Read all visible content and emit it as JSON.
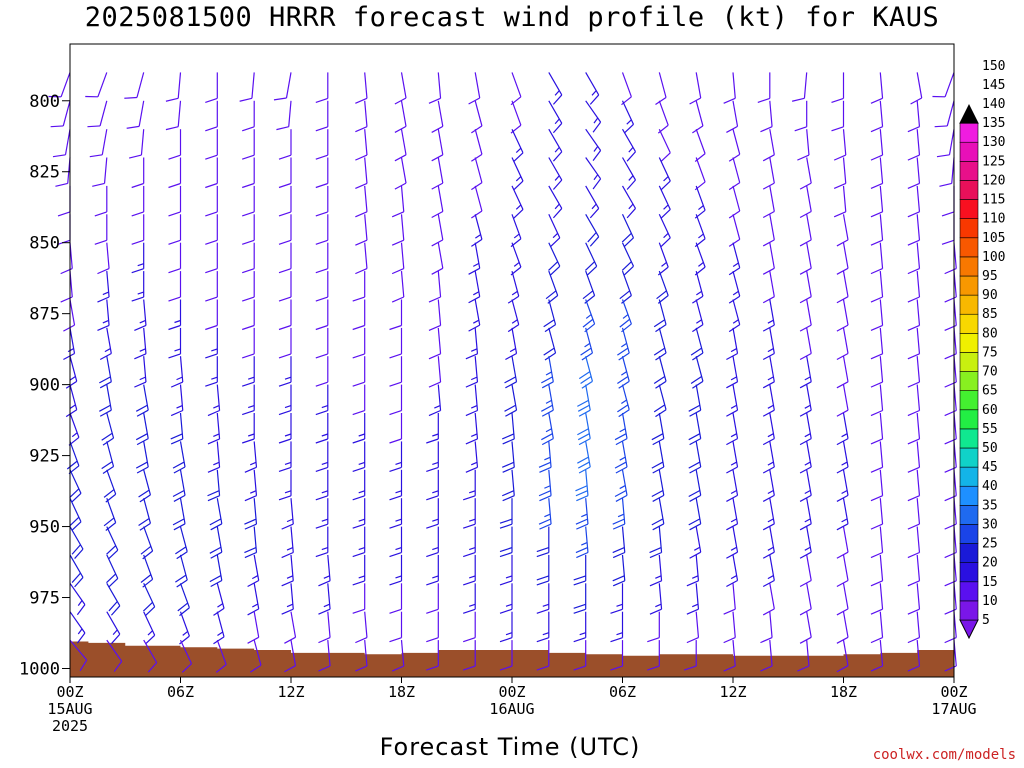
{
  "title": "2025081500 HRRR forecast wind profile (kt) for KAUS",
  "credit": "coolwx.com/models",
  "colors": {
    "terrain": "#9b4f2a",
    "speed_scale": [
      "#7a16e8",
      "#5a10f0",
      "#2a10e0",
      "#1a1ad8",
      "#1a44e8",
      "#1f6af0",
      "#1e90ff",
      "#13b4e8",
      "#10d2c8",
      "#10e890",
      "#22ee44",
      "#44f030",
      "#88f020",
      "#c8f010",
      "#f0f000",
      "#f8d800",
      "#f8b800",
      "#f89800",
      "#f87800",
      "#f85800",
      "#f83800",
      "#f81020",
      "#e8105a",
      "#e8108a",
      "#e810b8",
      "#f01ce0"
    ]
  },
  "chart_data": {
    "type": "wind_barb_time_height",
    "title": "2025081500 HRRR forecast wind profile (kt) for KAUS",
    "xlabel": "Forecast Time (UTC)",
    "ylabel": "",
    "x_range_hours": [
      0,
      48
    ],
    "y_range_hpa": [
      780,
      1003
    ],
    "y_ticks": [
      800,
      825,
      850,
      875,
      900,
      925,
      950,
      975,
      1000
    ],
    "x_ticks": [
      {
        "hour": 0,
        "lines": [
          "00Z",
          "15AUG",
          "2025"
        ]
      },
      {
        "hour": 6,
        "lines": [
          "06Z"
        ]
      },
      {
        "hour": 12,
        "lines": [
          "12Z"
        ]
      },
      {
        "hour": 18,
        "lines": [
          "18Z"
        ]
      },
      {
        "hour": 24,
        "lines": [
          "00Z",
          "16AUG"
        ]
      },
      {
        "hour": 30,
        "lines": [
          "06Z"
        ]
      },
      {
        "hour": 36,
        "lines": [
          "12Z"
        ]
      },
      {
        "hour": 42,
        "lines": [
          "18Z"
        ]
      },
      {
        "hour": 48,
        "lines": [
          "00Z",
          "17AUG"
        ]
      }
    ],
    "barb_hours": [
      0,
      2,
      4,
      6,
      8,
      10,
      12,
      14,
      16,
      18,
      20,
      22,
      24,
      26,
      28,
      30,
      32,
      34,
      36,
      38,
      40,
      42,
      44,
      46,
      48
    ],
    "barb_levels_hpa": [
      790,
      800,
      810,
      820,
      830,
      840,
      850,
      860,
      870,
      880,
      890,
      900,
      910,
      920,
      930,
      940,
      950,
      960,
      970,
      980,
      990
    ],
    "wind_dir_deg": [
      [
        200,
        200,
        195,
        185,
        180,
        185,
        190,
        180,
        175,
        170,
        175,
        170,
        160,
        150,
        150,
        160,
        165,
        170,
        175,
        180,
        185,
        180,
        175,
        170,
        200
      ],
      [
        195,
        195,
        190,
        185,
        180,
        180,
        185,
        180,
        175,
        170,
        170,
        165,
        160,
        150,
        145,
        155,
        160,
        165,
        170,
        175,
        180,
        180,
        175,
        175,
        195
      ],
      [
        190,
        190,
        185,
        180,
        180,
        180,
        180,
        180,
        175,
        170,
        170,
        165,
        155,
        150,
        145,
        150,
        155,
        160,
        165,
        170,
        175,
        175,
        175,
        175,
        190
      ],
      [
        185,
        185,
        180,
        180,
        180,
        180,
        180,
        180,
        175,
        170,
        170,
        165,
        155,
        150,
        145,
        150,
        155,
        160,
        165,
        170,
        170,
        175,
        175,
        175,
        185
      ],
      [
        180,
        180,
        180,
        180,
        180,
        180,
        180,
        180,
        175,
        175,
        170,
        165,
        155,
        150,
        150,
        150,
        155,
        160,
        165,
        170,
        170,
        175,
        175,
        175,
        180
      ],
      [
        180,
        180,
        180,
        180,
        180,
        180,
        180,
        180,
        175,
        175,
        170,
        165,
        160,
        155,
        150,
        155,
        155,
        160,
        165,
        170,
        170,
        170,
        175,
        175,
        180
      ],
      [
        175,
        175,
        180,
        180,
        180,
        180,
        180,
        180,
        175,
        175,
        170,
        170,
        160,
        155,
        155,
        155,
        160,
        160,
        165,
        170,
        170,
        170,
        175,
        175,
        175
      ],
      [
        175,
        175,
        180,
        180,
        180,
        180,
        180,
        180,
        180,
        175,
        175,
        170,
        165,
        160,
        160,
        160,
        160,
        165,
        165,
        170,
        170,
        170,
        175,
        175,
        175
      ],
      [
        170,
        175,
        175,
        180,
        180,
        180,
        180,
        180,
        180,
        180,
        175,
        170,
        165,
        165,
        160,
        160,
        165,
        165,
        165,
        170,
        170,
        170,
        175,
        175,
        175
      ],
      [
        170,
        170,
        175,
        180,
        180,
        180,
        180,
        180,
        180,
        180,
        175,
        175,
        170,
        165,
        165,
        165,
        165,
        165,
        170,
        170,
        170,
        170,
        175,
        175,
        175
      ],
      [
        165,
        170,
        175,
        175,
        180,
        180,
        180,
        180,
        180,
        180,
        175,
        175,
        170,
        170,
        165,
        165,
        165,
        165,
        170,
        170,
        170,
        170,
        175,
        175,
        175
      ],
      [
        165,
        170,
        170,
        175,
        175,
        180,
        180,
        180,
        180,
        180,
        175,
        175,
        170,
        170,
        170,
        165,
        165,
        170,
        170,
        170,
        170,
        170,
        175,
        175,
        175
      ],
      [
        160,
        165,
        170,
        175,
        175,
        180,
        180,
        180,
        180,
        180,
        180,
        175,
        175,
        170,
        170,
        170,
        170,
        170,
        170,
        170,
        170,
        170,
        175,
        175,
        175
      ],
      [
        160,
        165,
        170,
        170,
        175,
        175,
        180,
        180,
        180,
        180,
        180,
        175,
        175,
        175,
        170,
        170,
        170,
        170,
        170,
        170,
        170,
        170,
        175,
        175,
        175
      ],
      [
        155,
        160,
        165,
        170,
        175,
        175,
        180,
        180,
        180,
        180,
        180,
        180,
        175,
        175,
        175,
        170,
        170,
        170,
        170,
        170,
        170,
        170,
        175,
        175,
        175
      ],
      [
        155,
        160,
        165,
        170,
        170,
        175,
        175,
        180,
        180,
        180,
        180,
        180,
        180,
        175,
        175,
        175,
        170,
        170,
        170,
        170,
        170,
        170,
        175,
        175,
        175
      ],
      [
        150,
        155,
        160,
        165,
        170,
        175,
        175,
        180,
        180,
        180,
        180,
        180,
        180,
        180,
        175,
        175,
        175,
        170,
        170,
        170,
        170,
        170,
        175,
        175,
        175
      ],
      [
        150,
        155,
        160,
        165,
        170,
        170,
        175,
        175,
        180,
        180,
        180,
        180,
        180,
        180,
        180,
        175,
        175,
        175,
        170,
        170,
        170,
        170,
        175,
        175,
        175
      ],
      [
        145,
        150,
        155,
        160,
        165,
        170,
        175,
        175,
        180,
        180,
        180,
        180,
        180,
        180,
        180,
        180,
        175,
        175,
        175,
        170,
        170,
        170,
        175,
        175,
        175
      ],
      [
        145,
        150,
        155,
        160,
        165,
        170,
        170,
        175,
        175,
        180,
        180,
        180,
        180,
        180,
        180,
        180,
        180,
        175,
        175,
        175,
        170,
        170,
        175,
        175,
        175
      ],
      [
        140,
        145,
        150,
        155,
        160,
        165,
        170,
        175,
        175,
        175,
        180,
        180,
        180,
        180,
        180,
        180,
        180,
        180,
        175,
        175,
        175,
        170,
        175,
        175,
        175
      ]
    ],
    "wind_speed_kt": [
      [
        10,
        10,
        10,
        10,
        10,
        10,
        10,
        10,
        10,
        10,
        10,
        10,
        10,
        15,
        15,
        10,
        10,
        10,
        10,
        10,
        10,
        10,
        10,
        10,
        10
      ],
      [
        10,
        10,
        10,
        10,
        10,
        10,
        10,
        10,
        10,
        10,
        10,
        10,
        10,
        15,
        15,
        15,
        10,
        10,
        10,
        10,
        10,
        10,
        10,
        10,
        10
      ],
      [
        10,
        10,
        10,
        10,
        10,
        10,
        10,
        10,
        10,
        10,
        10,
        10,
        15,
        15,
        15,
        15,
        10,
        10,
        10,
        10,
        10,
        10,
        10,
        10,
        10
      ],
      [
        10,
        10,
        10,
        10,
        10,
        10,
        10,
        10,
        10,
        10,
        10,
        10,
        15,
        15,
        15,
        15,
        15,
        10,
        10,
        10,
        10,
        10,
        10,
        10,
        10
      ],
      [
        10,
        10,
        10,
        10,
        10,
        10,
        10,
        10,
        10,
        10,
        10,
        10,
        15,
        15,
        15,
        15,
        15,
        15,
        10,
        10,
        10,
        10,
        10,
        10,
        10
      ],
      [
        10,
        10,
        10,
        10,
        10,
        10,
        10,
        10,
        10,
        10,
        10,
        15,
        15,
        15,
        20,
        20,
        15,
        15,
        10,
        10,
        10,
        10,
        10,
        10,
        10
      ],
      [
        10,
        10,
        15,
        10,
        10,
        10,
        10,
        10,
        10,
        10,
        10,
        15,
        15,
        20,
        20,
        20,
        15,
        15,
        15,
        10,
        10,
        10,
        10,
        10,
        10
      ],
      [
        10,
        15,
        15,
        10,
        10,
        10,
        10,
        10,
        10,
        10,
        10,
        15,
        15,
        20,
        20,
        20,
        20,
        15,
        15,
        10,
        10,
        10,
        10,
        10,
        10
      ],
      [
        10,
        15,
        15,
        15,
        10,
        10,
        10,
        10,
        10,
        10,
        10,
        15,
        15,
        20,
        25,
        25,
        20,
        15,
        15,
        15,
        10,
        10,
        10,
        10,
        10
      ],
      [
        15,
        15,
        15,
        15,
        15,
        10,
        10,
        10,
        10,
        10,
        10,
        15,
        15,
        20,
        25,
        25,
        20,
        20,
        15,
        15,
        10,
        10,
        10,
        10,
        10
      ],
      [
        15,
        20,
        15,
        15,
        15,
        15,
        15,
        10,
        10,
        10,
        10,
        15,
        20,
        25,
        30,
        25,
        20,
        20,
        15,
        15,
        15,
        10,
        10,
        10,
        10
      ],
      [
        15,
        20,
        20,
        15,
        15,
        15,
        15,
        15,
        10,
        10,
        15,
        15,
        20,
        25,
        30,
        25,
        20,
        20,
        15,
        15,
        15,
        10,
        10,
        10,
        10
      ],
      [
        15,
        20,
        20,
        20,
        15,
        15,
        15,
        15,
        15,
        10,
        15,
        15,
        20,
        25,
        30,
        25,
        20,
        20,
        15,
        15,
        15,
        15,
        10,
        10,
        10
      ],
      [
        20,
        20,
        20,
        20,
        15,
        15,
        15,
        15,
        15,
        15,
        15,
        15,
        20,
        25,
        30,
        25,
        20,
        20,
        15,
        15,
        15,
        15,
        10,
        10,
        10
      ],
      [
        20,
        20,
        20,
        20,
        20,
        15,
        15,
        15,
        15,
        15,
        15,
        15,
        20,
        25,
        30,
        25,
        20,
        20,
        15,
        15,
        15,
        15,
        10,
        10,
        10
      ],
      [
        20,
        20,
        20,
        20,
        20,
        20,
        15,
        15,
        15,
        15,
        15,
        15,
        20,
        25,
        25,
        25,
        20,
        20,
        15,
        15,
        15,
        15,
        10,
        10,
        10
      ],
      [
        20,
        20,
        20,
        20,
        20,
        20,
        15,
        15,
        15,
        15,
        15,
        15,
        20,
        20,
        25,
        20,
        20,
        15,
        15,
        15,
        15,
        10,
        10,
        10,
        10
      ],
      [
        20,
        20,
        20,
        20,
        20,
        15,
        15,
        15,
        15,
        15,
        15,
        15,
        15,
        20,
        20,
        20,
        15,
        15,
        15,
        15,
        10,
        10,
        10,
        10,
        10
      ],
      [
        15,
        20,
        20,
        20,
        15,
        15,
        15,
        15,
        10,
        10,
        10,
        15,
        15,
        15,
        20,
        15,
        15,
        15,
        10,
        10,
        10,
        10,
        10,
        10,
        10
      ],
      [
        15,
        15,
        15,
        15,
        15,
        10,
        10,
        10,
        10,
        10,
        10,
        10,
        15,
        15,
        15,
        15,
        10,
        10,
        10,
        10,
        10,
        10,
        10,
        10,
        10
      ],
      [
        10,
        10,
        10,
        10,
        10,
        10,
        10,
        10,
        10,
        10,
        10,
        10,
        10,
        10,
        10,
        10,
        10,
        10,
        10,
        10,
        10,
        10,
        10,
        10,
        10
      ]
    ],
    "surface_pressure_hpa": [
      {
        "hour": 0,
        "p": 990.5
      },
      {
        "hour": 1,
        "p": 991
      },
      {
        "hour": 3,
        "p": 992
      },
      {
        "hour": 6,
        "p": 992.5
      },
      {
        "hour": 8,
        "p": 993
      },
      {
        "hour": 10,
        "p": 993.5
      },
      {
        "hour": 12,
        "p": 994.5
      },
      {
        "hour": 14,
        "p": 994.5
      },
      {
        "hour": 16,
        "p": 995
      },
      {
        "hour": 18,
        "p": 994.5
      },
      {
        "hour": 20,
        "p": 993.5
      },
      {
        "hour": 22,
        "p": 993.5
      },
      {
        "hour": 24,
        "p": 993.5
      },
      {
        "hour": 26,
        "p": 994.5
      },
      {
        "hour": 28,
        "p": 995
      },
      {
        "hour": 30,
        "p": 995.5
      },
      {
        "hour": 32,
        "p": 995
      },
      {
        "hour": 34,
        "p": 995
      },
      {
        "hour": 36,
        "p": 995.5
      },
      {
        "hour": 38,
        "p": 995.5
      },
      {
        "hour": 40,
        "p": 995.5
      },
      {
        "hour": 42,
        "p": 995
      },
      {
        "hour": 44,
        "p": 994.5
      },
      {
        "hour": 46,
        "p": 993.5
      },
      {
        "hour": 48,
        "p": 993
      }
    ],
    "colorbar": {
      "ticks": [
        5,
        10,
        15,
        20,
        25,
        30,
        35,
        40,
        45,
        50,
        55,
        60,
        65,
        70,
        75,
        80,
        85,
        90,
        95,
        100,
        105,
        110,
        115,
        120,
        125,
        130,
        135,
        140,
        145,
        150
      ],
      "extend": "both"
    }
  }
}
